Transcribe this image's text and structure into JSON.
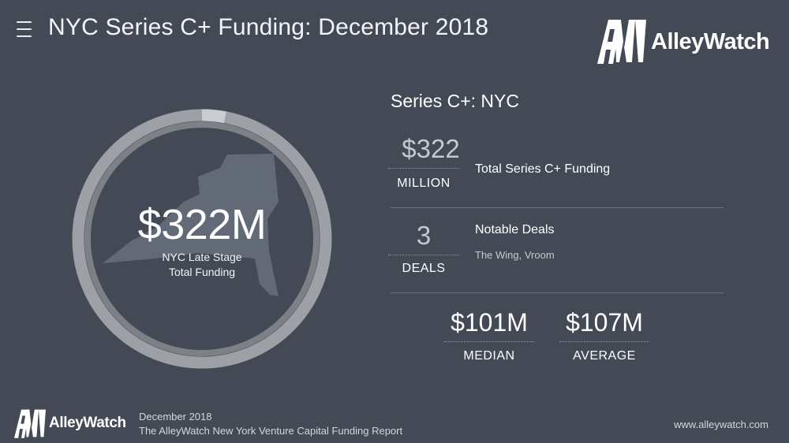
{
  "header": {
    "menu_icon": "hamburger-menu-icon",
    "title": "NYC Series C+ Funding: December 2018",
    "logo_text": "AlleyWatch"
  },
  "hero": {
    "value": "$322M",
    "label_line1": "NYC Late Stage",
    "label_line2": "Total Funding",
    "ring_fill_fraction": 0.97,
    "map_icon": "new-york-state-map-icon"
  },
  "section": {
    "title": "Series C+: NYC"
  },
  "metrics": [
    {
      "value": "$322",
      "unit": "MILLION",
      "description": "Total Series C+ Funding",
      "sub": ""
    },
    {
      "value": "3",
      "unit": "DEALS",
      "description": "Notable Deals",
      "sub": "The Wing, Vroom"
    }
  ],
  "stats": [
    {
      "value": "$101M",
      "unit": "MEDIAN"
    },
    {
      "value": "$107M",
      "unit": "AVERAGE"
    }
  ],
  "footer": {
    "logo_text": "AlleyWatch",
    "date": "December 2018",
    "report": "The AlleyWatch New York Venture Capital Funding Report",
    "url": "www.alleywatch.com"
  },
  "colors": {
    "background": "#434a55",
    "ring_track": "#9da0a4",
    "ring_inner": "#7d8085",
    "ring_accent": "#c9ccd0",
    "map_fill": "#616a76"
  }
}
